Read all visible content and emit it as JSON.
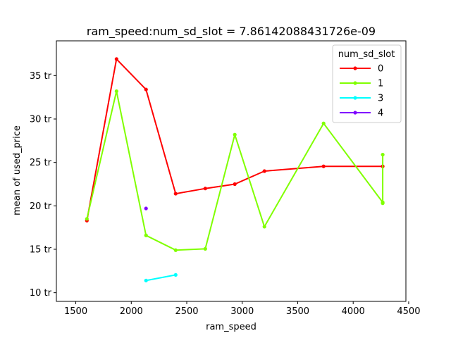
{
  "chart_data": {
    "type": "line",
    "title": "ram_speed:num_sd_slot = 7.86142088431726e-09",
    "xlabel": "ram_speed",
    "ylabel": "mean of used_price",
    "xlim": [
      1325,
      4475
    ],
    "ylim": [
      9000000,
      39000000
    ],
    "xticks": [
      1500,
      2000,
      2500,
      3000,
      3500,
      4000,
      4500
    ],
    "yticks": [
      10000000,
      15000000,
      20000000,
      25000000,
      30000000,
      35000000
    ],
    "ytick_labels": [
      "10 tr",
      "15 tr",
      "20 tr",
      "25 tr",
      "30 tr",
      "35 tr"
    ],
    "grid": false,
    "legend": {
      "title": "num_sd_slot",
      "placement": "top-right"
    },
    "series": [
      {
        "name": "0",
        "color": "#ff0000",
        "points": [
          [
            1600,
            18300000
          ],
          [
            1867,
            36900000
          ],
          [
            2133,
            33400000
          ],
          [
            2400,
            21400000
          ],
          [
            2667,
            22000000
          ],
          [
            2933,
            22500000
          ],
          [
            3200,
            24000000
          ],
          [
            3733,
            24550000
          ],
          [
            4266,
            24550000
          ]
        ]
      },
      {
        "name": "1",
        "color": "#80ff00",
        "points": [
          [
            1600,
            18500000
          ],
          [
            1867,
            33200000
          ],
          [
            2133,
            16600000
          ],
          [
            2400,
            14900000
          ],
          [
            2667,
            15050000
          ],
          [
            2933,
            28200000
          ],
          [
            3200,
            17600000
          ],
          [
            3733,
            29500000
          ],
          [
            4266,
            20400000
          ],
          [
            4266,
            25900000
          ],
          [
            4266,
            20300000
          ]
        ]
      },
      {
        "name": "3",
        "color": "#00ffff",
        "points": [
          [
            2133,
            11400000
          ],
          [
            2400,
            12050000
          ]
        ]
      },
      {
        "name": "4",
        "color": "#8000ff",
        "points": [
          [
            2133,
            19700000
          ]
        ]
      }
    ]
  }
}
